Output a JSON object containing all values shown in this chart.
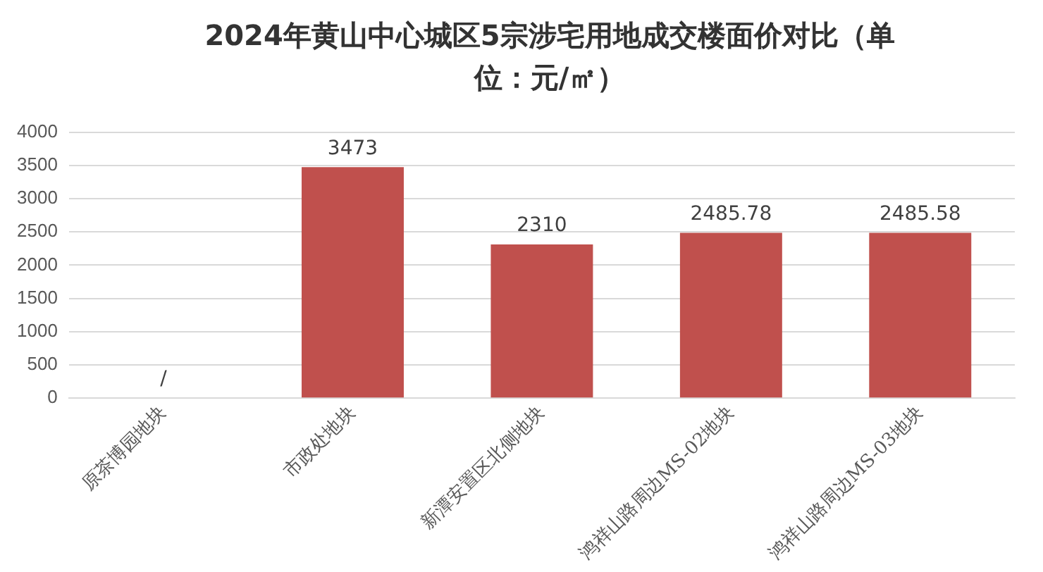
{
  "chart_data": {
    "type": "bar",
    "title": "2024年黄山中心城区5宗涉宅用地成交楼面价对比（单位：元/㎡）",
    "categories": [
      "原茶博园地块",
      "市政处地块",
      "新潭安置区北侧地块",
      "鸿祥山路周边MS-02地块",
      "鸿祥山路周边MS-03地块"
    ],
    "values": [
      null,
      3473,
      2310,
      2485.78,
      2485.58
    ],
    "value_labels": [
      "/",
      "3473",
      "2310",
      "2485.78",
      "2485.58"
    ],
    "color": "#c0504d",
    "ylim": [
      0,
      4000
    ],
    "yticks": [
      0,
      500,
      1000,
      1500,
      2000,
      2500,
      3000,
      3500,
      4000
    ],
    "grid": "y",
    "legend": false
  }
}
